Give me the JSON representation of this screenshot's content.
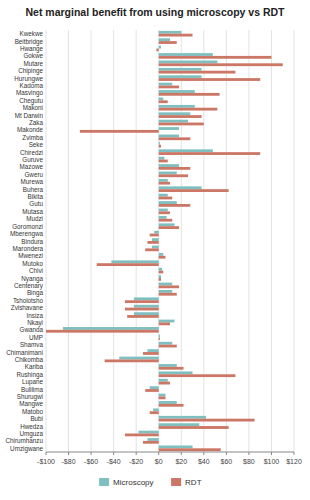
{
  "chart_data": {
    "type": "bar",
    "orientation": "horizontal",
    "title": "Net marginal benefit from using microscopy vs RDT",
    "categories": [
      "Kwekwe",
      "Beitbridge",
      "Hwange",
      "Gokwe",
      "Mutare",
      "Chipinge",
      "Hurungwe",
      "Kadoma",
      "Masvingo",
      "Chegutu",
      "Makoni",
      "Mt Darwin",
      "Zaka",
      "Makonde",
      "Zvimba",
      "Seke",
      "Chiredzi",
      "Guruve",
      "Mazowe",
      "Gweru",
      "Murewa",
      "Buhera",
      "Bikita",
      "Gutu",
      "Mutasa",
      "Mudzi",
      "Goromonzi",
      "Mberengwa",
      "Bindura",
      "Marondera",
      "Mwenezi",
      "Mutoko",
      "Chivi",
      "Nyanga",
      "Centenary",
      "Binga",
      "Tsholotsho",
      "Zvishavane",
      "Insiza",
      "Nkayi",
      "Gwanda",
      "UMP",
      "Shamva",
      "Chimanimani",
      "Chikomba",
      "Kariba",
      "Rushinga",
      "Lupane",
      "Bulilima",
      "Shurugwi",
      "Mangwe",
      "Matobo",
      "Bubi",
      "Hwedza",
      "Umguza",
      "Chirumhanzu",
      "Umzigwane"
    ],
    "series": [
      {
        "name": "Microscopy",
        "color": "#7fbfbf",
        "values": [
          20,
          10,
          2,
          48,
          52,
          38,
          38,
          12,
          32,
          4,
          32,
          28,
          26,
          18,
          18,
          1,
          48,
          5,
          18,
          16,
          8,
          38,
          8,
          16,
          8,
          7,
          14,
          -4,
          -6,
          -6,
          4,
          -42,
          3,
          2,
          12,
          12,
          -22,
          -22,
          -22,
          14,
          -85,
          1,
          12,
          -10,
          -35,
          16,
          30,
          8,
          -8,
          6,
          16,
          -5,
          42,
          36,
          -18,
          -10,
          30
        ]
      },
      {
        "name": "RDT",
        "color": "#cc7766",
        "values": [
          30,
          16,
          -2,
          100,
          110,
          68,
          90,
          18,
          54,
          8,
          52,
          38,
          40,
          -70,
          28,
          2,
          90,
          8,
          28,
          26,
          10,
          62,
          12,
          28,
          10,
          12,
          18,
          -8,
          -10,
          -12,
          6,
          -55,
          4,
          2,
          18,
          16,
          -30,
          -30,
          -28,
          10,
          -100,
          1,
          16,
          -14,
          -48,
          22,
          68,
          10,
          -12,
          6,
          22,
          -8,
          85,
          62,
          -30,
          -14,
          55
        ]
      }
    ],
    "xlim": [
      -100,
      120
    ],
    "xticks": [
      {
        "value": -100,
        "label": "-$100"
      },
      {
        "value": -80,
        "label": "-$80"
      },
      {
        "value": -60,
        "label": "-$60"
      },
      {
        "value": -40,
        "label": "-$40"
      },
      {
        "value": -20,
        "label": "-$20"
      },
      {
        "value": 0,
        "label": "$0"
      },
      {
        "value": 20,
        "label": "$20"
      },
      {
        "value": 40,
        "label": "$40"
      },
      {
        "value": 60,
        "label": "$60"
      },
      {
        "value": 80,
        "label": "$80"
      },
      {
        "value": 100,
        "label": "$100"
      },
      {
        "value": 120,
        "label": "$120"
      }
    ],
    "grid": true,
    "legend": "bottom"
  }
}
